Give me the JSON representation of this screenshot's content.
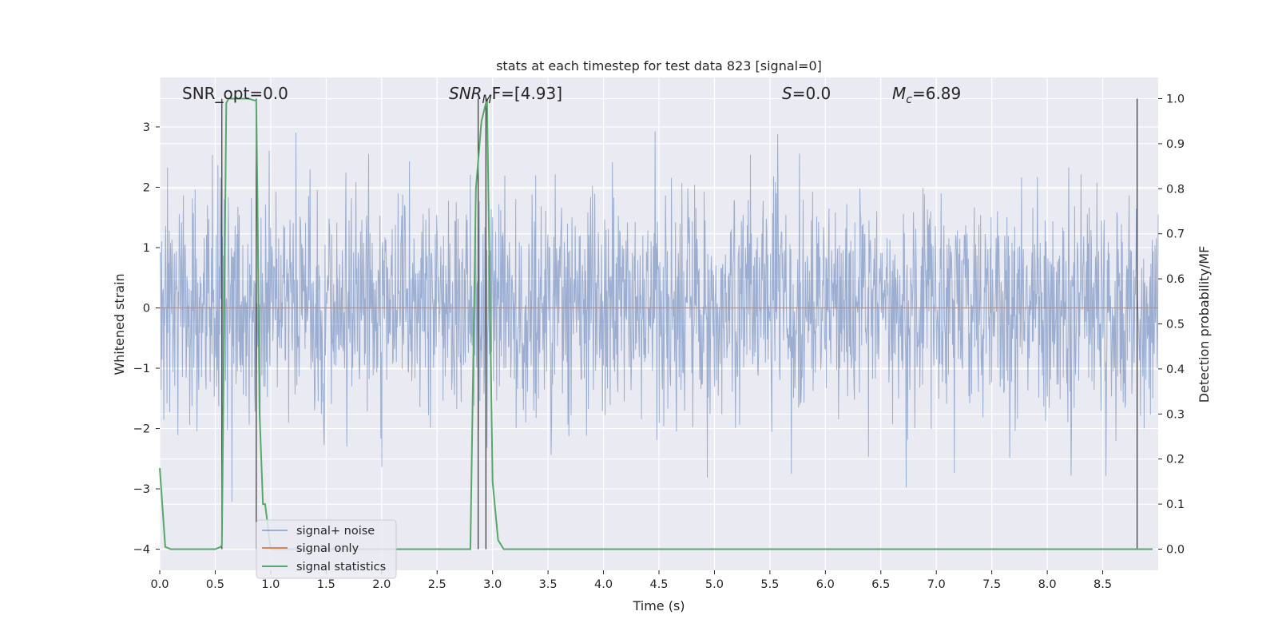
{
  "chart_data": {
    "type": "line",
    "title": "stats at each timestep for test data 823 [signal=0]",
    "xlabel": "Time (s)",
    "ylabel_left": "Whitened strain",
    "ylabel_right": "Detection probability/MF",
    "xlim": [
      0.0,
      9.0
    ],
    "ylim_left": [
      -4.35,
      3.82
    ],
    "ylim_right": [
      -0.047,
      1.047
    ],
    "x_ticks": [
      0.0,
      0.5,
      1.0,
      1.5,
      2.0,
      2.5,
      3.0,
      3.5,
      4.0,
      4.5,
      5.0,
      5.5,
      6.0,
      6.5,
      7.0,
      7.5,
      8.0,
      8.5
    ],
    "x_tick_labels": [
      "0.0",
      "0.5",
      "1.0",
      "1.5",
      "2.0",
      "2.5",
      "3.0",
      "3.5",
      "4.0",
      "4.5",
      "5.0",
      "5.5",
      "6.0",
      "6.5",
      "7.0",
      "7.5",
      "8.0",
      "8.5"
    ],
    "y_left_ticks": [
      -4,
      -3,
      -2,
      -1,
      0,
      1,
      2,
      3
    ],
    "y_left_tick_labels": [
      "−4",
      "−3",
      "−2",
      "−1",
      "0",
      "1",
      "2",
      "3"
    ],
    "y_right_ticks": [
      0.0,
      0.1,
      0.2,
      0.3,
      0.4,
      0.5,
      0.6,
      0.7,
      0.8,
      0.9,
      1.0
    ],
    "y_right_tick_labels": [
      "0.0",
      "0.1",
      "0.2",
      "0.3",
      "0.4",
      "0.5",
      "0.6",
      "0.7",
      "0.8",
      "0.9",
      "1.0"
    ],
    "grid": true,
    "legend_position": "bottom-left",
    "annotations": {
      "snr_opt": "SNR_opt=0.0",
      "snr_mf_prefix": "SNR",
      "snr_mf_sub": "M",
      "snr_mf_suffix": "F=[4.93]",
      "s_var": "S",
      "s_val": "=0.0",
      "mc_var": "M",
      "mc_sub": "c",
      "mc_val": "=6.89"
    },
    "series": [
      {
        "name": "signal+ noise",
        "color": "#4c72b0",
        "alpha": 0.5,
        "kind": "noise",
        "description_values": "whitened strain noise, bulk between about -1.8 and 1.6, spikes up to ~3.4 and down to ~-4.0"
      },
      {
        "name": "signal only",
        "color": "#dd8452",
        "kind": "line",
        "x": [
          0.0,
          9.0
        ],
        "y": [
          0.0,
          0.0
        ]
      },
      {
        "name": "signal statistics",
        "color": "#55a868",
        "axis": "right",
        "kind": "line",
        "x": [
          0.0,
          0.05,
          0.1,
          0.15,
          0.5,
          0.55,
          0.56,
          0.6,
          0.62,
          0.65,
          0.8,
          0.87,
          0.88,
          0.9,
          0.93,
          0.95,
          1.0,
          2.8,
          2.85,
          2.9,
          2.95,
          3.0,
          3.05,
          3.1,
          8.95
        ],
        "y": [
          0.18,
          0.005,
          0.0,
          0.0,
          0.0,
          0.005,
          0.01,
          0.99,
          1.0,
          1.0,
          1.0,
          0.995,
          0.8,
          0.3,
          0.1,
          0.1,
          0.0,
          0.0,
          0.8,
          0.95,
          1.0,
          0.15,
          0.02,
          0.0,
          0.0
        ]
      }
    ],
    "markers": {
      "color": "#333333",
      "vertical_lines_x": [
        0.56,
        0.87,
        2.87,
        2.94,
        8.81
      ]
    },
    "palette": {
      "plot_background": "#eaeaf2",
      "grid": "#ffffff",
      "text": "#262626"
    }
  }
}
